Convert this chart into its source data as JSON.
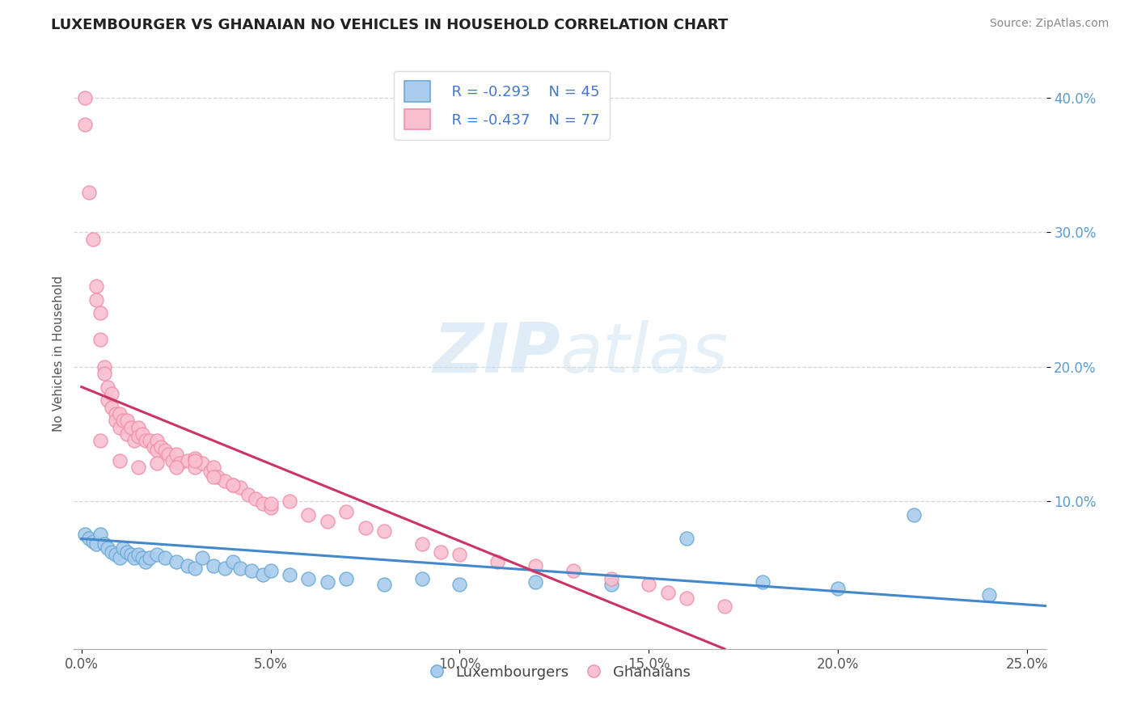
{
  "title": "LUXEMBOURGER VS GHANAIAN NO VEHICLES IN HOUSEHOLD CORRELATION CHART",
  "source_text": "Source: ZipAtlas.com",
  "ylabel": "No Vehicles in Household",
  "xlim": [
    -0.002,
    0.255
  ],
  "ylim": [
    -0.01,
    0.43
  ],
  "xtick_labels": [
    "0.0%",
    "5.0%",
    "10.0%",
    "15.0%",
    "20.0%",
    "25.0%"
  ],
  "xtick_vals": [
    0.0,
    0.05,
    0.1,
    0.15,
    0.2,
    0.25
  ],
  "ytick_labels": [
    "10.0%",
    "20.0%",
    "30.0%",
    "40.0%"
  ],
  "ytick_vals": [
    0.1,
    0.2,
    0.3,
    0.4
  ],
  "grid_color": "#cccccc",
  "background_color": "#ffffff",
  "legend_r1": "R = -0.293",
  "legend_n1": "N = 45",
  "legend_r2": "R = -0.437",
  "legend_n2": "N = 77",
  "blue_edge_color": "#6aaad4",
  "pink_edge_color": "#f090a8",
  "blue_fill_color": "#aaccee",
  "pink_fill_color": "#f8c0d0",
  "blue_line_color": "#4488cc",
  "pink_line_color": "#cc3366",
  "legend_label1": "Luxembourgers",
  "legend_label2": "Ghanaians",
  "lux_x": [
    0.001,
    0.002,
    0.003,
    0.004,
    0.005,
    0.006,
    0.007,
    0.008,
    0.009,
    0.01,
    0.011,
    0.012,
    0.013,
    0.014,
    0.015,
    0.016,
    0.017,
    0.018,
    0.02,
    0.022,
    0.025,
    0.028,
    0.03,
    0.032,
    0.035,
    0.038,
    0.04,
    0.042,
    0.045,
    0.048,
    0.05,
    0.055,
    0.06,
    0.065,
    0.07,
    0.08,
    0.09,
    0.1,
    0.12,
    0.14,
    0.16,
    0.18,
    0.2,
    0.22,
    0.24
  ],
  "lux_y": [
    0.075,
    0.072,
    0.07,
    0.068,
    0.075,
    0.068,
    0.065,
    0.062,
    0.06,
    0.058,
    0.065,
    0.062,
    0.06,
    0.058,
    0.06,
    0.058,
    0.055,
    0.058,
    0.06,
    0.058,
    0.055,
    0.052,
    0.05,
    0.058,
    0.052,
    0.05,
    0.055,
    0.05,
    0.048,
    0.045,
    0.048,
    0.045,
    0.042,
    0.04,
    0.042,
    0.038,
    0.042,
    0.038,
    0.04,
    0.038,
    0.072,
    0.04,
    0.035,
    0.09,
    0.03
  ],
  "gha_x": [
    0.001,
    0.001,
    0.002,
    0.003,
    0.004,
    0.004,
    0.005,
    0.005,
    0.006,
    0.006,
    0.007,
    0.007,
    0.008,
    0.008,
    0.009,
    0.009,
    0.01,
    0.01,
    0.011,
    0.012,
    0.012,
    0.013,
    0.014,
    0.015,
    0.015,
    0.016,
    0.017,
    0.018,
    0.019,
    0.02,
    0.02,
    0.021,
    0.022,
    0.023,
    0.024,
    0.025,
    0.026,
    0.028,
    0.03,
    0.03,
    0.032,
    0.034,
    0.035,
    0.036,
    0.038,
    0.04,
    0.042,
    0.044,
    0.046,
    0.048,
    0.05,
    0.055,
    0.06,
    0.065,
    0.07,
    0.075,
    0.08,
    0.09,
    0.095,
    0.1,
    0.11,
    0.12,
    0.13,
    0.14,
    0.15,
    0.155,
    0.16,
    0.17,
    0.005,
    0.01,
    0.015,
    0.02,
    0.025,
    0.03,
    0.035,
    0.04,
    0.05
  ],
  "gha_y": [
    0.4,
    0.38,
    0.33,
    0.295,
    0.26,
    0.25,
    0.24,
    0.22,
    0.2,
    0.195,
    0.185,
    0.175,
    0.18,
    0.17,
    0.165,
    0.16,
    0.165,
    0.155,
    0.16,
    0.16,
    0.15,
    0.155,
    0.145,
    0.155,
    0.148,
    0.15,
    0.145,
    0.145,
    0.14,
    0.145,
    0.138,
    0.14,
    0.138,
    0.135,
    0.13,
    0.135,
    0.128,
    0.13,
    0.132,
    0.125,
    0.128,
    0.122,
    0.125,
    0.118,
    0.115,
    0.112,
    0.11,
    0.105,
    0.102,
    0.098,
    0.095,
    0.1,
    0.09,
    0.085,
    0.092,
    0.08,
    0.078,
    0.068,
    0.062,
    0.06,
    0.055,
    0.052,
    0.048,
    0.042,
    0.038,
    0.032,
    0.028,
    0.022,
    0.145,
    0.13,
    0.125,
    0.128,
    0.125,
    0.13,
    0.118,
    0.112,
    0.098
  ],
  "lux_trend_x": [
    0.0,
    0.255
  ],
  "lux_trend_y": [
    0.072,
    0.022
  ],
  "gha_trend_x": [
    0.0,
    0.17
  ],
  "gha_trend_y": [
    0.185,
    -0.01
  ]
}
